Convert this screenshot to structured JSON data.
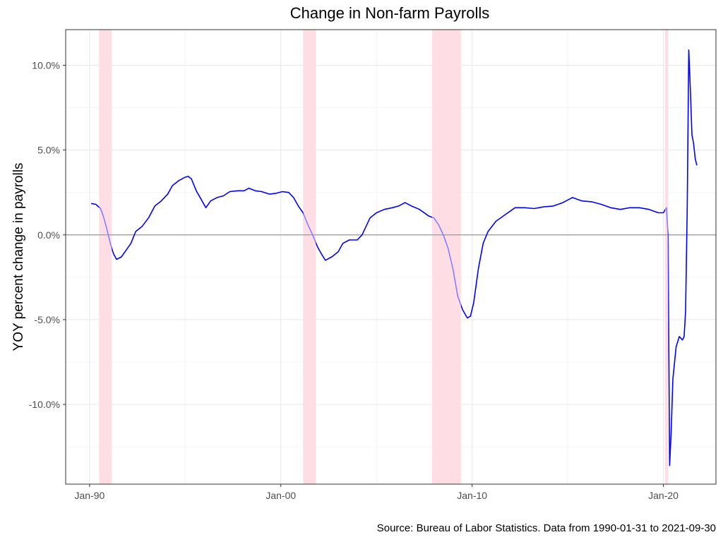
{
  "chart_data": {
    "type": "line",
    "title": "Change in Non-farm Payrolls",
    "xlabel": "",
    "ylabel": "YOY percent change in payrolls",
    "caption": "Source: Bureau of Labor Statistics. Data from 1990-01-31 to 2021-09-30",
    "x_tick_labels": [
      "Jan-90",
      "Jan-00",
      "Jan-10",
      "Jan-20"
    ],
    "x_tick_dates": [
      "1990-01-01",
      "2000-01-01",
      "2010-01-01",
      "2020-01-01"
    ],
    "y_tick_labels": [
      "10.0%",
      "5.0%",
      "0.0%",
      "-5.0%",
      "-10.0%"
    ],
    "y_tick_values": [
      10,
      5,
      0,
      -5,
      -10
    ],
    "xlim": [
      "1988-10-01",
      "2022-10-01"
    ],
    "ylim": [
      -14.7,
      12.1
    ],
    "grid": true,
    "reference_line_y": 0,
    "colors": {
      "line": "#0000ff",
      "line_in_recession": "#8080ff",
      "recession_shading": "#ffdde5",
      "zero_line": "#a6a6a6",
      "grid_major": "#ebebeb",
      "grid_minor": "#f4f4f4"
    },
    "recessions": [
      {
        "start": "1990-07-01",
        "end": "1991-03-01"
      },
      {
        "start": "2001-03-01",
        "end": "2001-11-01"
      },
      {
        "start": "2007-12-01",
        "end": "2009-06-01"
      },
      {
        "start": "2020-02-01",
        "end": "2020-04-01"
      }
    ],
    "series": [
      {
        "points": [
          [
            "1990-01-31",
            1.85
          ],
          [
            "1990-04-30",
            1.8
          ],
          [
            "1990-07-31",
            1.55
          ],
          [
            "1990-09-30",
            1.0
          ],
          [
            "1990-11-30",
            0.3
          ],
          [
            "1991-01-31",
            -0.5
          ],
          [
            "1991-03-31",
            -1.1
          ],
          [
            "1991-05-31",
            -1.45
          ],
          [
            "1991-08-31",
            -1.3
          ],
          [
            "1991-11-30",
            -0.9
          ],
          [
            "1992-02-29",
            -0.5
          ],
          [
            "1992-05-31",
            0.2
          ],
          [
            "1992-09-30",
            0.5
          ],
          [
            "1993-01-31",
            1.0
          ],
          [
            "1993-05-31",
            1.7
          ],
          [
            "1993-09-30",
            2.0
          ],
          [
            "1994-01-31",
            2.4
          ],
          [
            "1994-04-30",
            2.9
          ],
          [
            "1994-08-31",
            3.2
          ],
          [
            "1994-12-31",
            3.4
          ],
          [
            "1995-02-28",
            3.45
          ],
          [
            "1995-04-30",
            3.3
          ],
          [
            "1995-07-31",
            2.6
          ],
          [
            "1995-10-31",
            2.1
          ],
          [
            "1996-01-31",
            1.6
          ],
          [
            "1996-04-30",
            2.0
          ],
          [
            "1996-08-31",
            2.2
          ],
          [
            "1996-12-31",
            2.3
          ],
          [
            "1997-04-30",
            2.55
          ],
          [
            "1997-09-30",
            2.6
          ],
          [
            "1998-01-31",
            2.6
          ],
          [
            "1998-04-30",
            2.75
          ],
          [
            "1998-08-31",
            2.6
          ],
          [
            "1998-12-31",
            2.55
          ],
          [
            "1999-05-31",
            2.4
          ],
          [
            "1999-09-30",
            2.45
          ],
          [
            "2000-01-31",
            2.55
          ],
          [
            "2000-05-31",
            2.5
          ],
          [
            "2000-08-31",
            2.2
          ],
          [
            "2000-11-30",
            1.7
          ],
          [
            "2001-02-28",
            1.3
          ],
          [
            "2001-05-31",
            0.6
          ],
          [
            "2001-08-31",
            0.0
          ],
          [
            "2001-11-30",
            -0.7
          ],
          [
            "2002-02-28",
            -1.2
          ],
          [
            "2002-04-30",
            -1.5
          ],
          [
            "2002-08-31",
            -1.3
          ],
          [
            "2002-12-31",
            -1.0
          ],
          [
            "2003-03-31",
            -0.5
          ],
          [
            "2003-07-31",
            -0.3
          ],
          [
            "2003-12-31",
            -0.3
          ],
          [
            "2004-03-31",
            0.0
          ],
          [
            "2004-08-31",
            1.0
          ],
          [
            "2004-12-31",
            1.3
          ],
          [
            "2005-05-31",
            1.5
          ],
          [
            "2005-10-31",
            1.6
          ],
          [
            "2006-02-28",
            1.7
          ],
          [
            "2006-06-30",
            1.9
          ],
          [
            "2006-10-31",
            1.7
          ],
          [
            "2007-03-31",
            1.5
          ],
          [
            "2007-09-30",
            1.1
          ],
          [
            "2007-12-31",
            1.0
          ],
          [
            "2008-03-31",
            0.6
          ],
          [
            "2008-06-30",
            0.0
          ],
          [
            "2008-09-30",
            -0.8
          ],
          [
            "2008-12-31",
            -2.0
          ],
          [
            "2009-03-31",
            -3.6
          ],
          [
            "2009-06-30",
            -4.4
          ],
          [
            "2009-09-30",
            -4.9
          ],
          [
            "2009-11-30",
            -4.8
          ],
          [
            "2010-01-31",
            -4.0
          ],
          [
            "2010-04-30",
            -2.0
          ],
          [
            "2010-07-31",
            -0.5
          ],
          [
            "2010-10-31",
            0.2
          ],
          [
            "2011-03-31",
            0.8
          ],
          [
            "2011-09-30",
            1.2
          ],
          [
            "2012-03-31",
            1.6
          ],
          [
            "2012-09-30",
            1.6
          ],
          [
            "2013-03-31",
            1.55
          ],
          [
            "2013-09-30",
            1.65
          ],
          [
            "2014-03-31",
            1.7
          ],
          [
            "2014-09-30",
            1.9
          ],
          [
            "2015-03-31",
            2.2
          ],
          [
            "2015-09-30",
            2.0
          ],
          [
            "2016-03-31",
            1.95
          ],
          [
            "2016-09-30",
            1.8
          ],
          [
            "2017-03-31",
            1.6
          ],
          [
            "2017-09-30",
            1.5
          ],
          [
            "2018-03-31",
            1.6
          ],
          [
            "2018-09-30",
            1.6
          ],
          [
            "2019-03-31",
            1.5
          ],
          [
            "2019-09-30",
            1.3
          ],
          [
            "2019-12-31",
            1.3
          ],
          [
            "2020-02-29",
            1.6
          ],
          [
            "2020-03-31",
            0.0
          ],
          [
            "2020-04-30",
            -13.6
          ],
          [
            "2020-05-31",
            -11.5
          ],
          [
            "2020-06-30",
            -8.5
          ],
          [
            "2020-08-31",
            -6.6
          ],
          [
            "2020-10-31",
            -6.0
          ],
          [
            "2020-12-31",
            -6.2
          ],
          [
            "2021-01-31",
            -6.0
          ],
          [
            "2021-02-28",
            -4.5
          ],
          [
            "2021-03-31",
            1.5
          ],
          [
            "2021-04-30",
            10.9
          ],
          [
            "2021-05-31",
            8.5
          ],
          [
            "2021-06-30",
            5.9
          ],
          [
            "2021-07-31",
            5.4
          ],
          [
            "2021-08-31",
            4.5
          ],
          [
            "2021-09-30",
            4.1
          ]
        ]
      }
    ]
  }
}
